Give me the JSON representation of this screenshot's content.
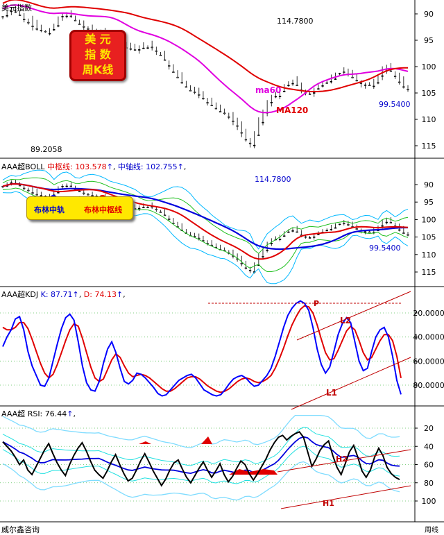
{
  "top_label": "美元指数",
  "badge": {
    "line1": "美 元",
    "line2": "指 数",
    "line3": "周K线"
  },
  "panel_titles": {
    "boll": {
      "prefix": "AAA超BOLL",
      "mid_label": "中枢线:",
      "mid_value": "103.578",
      "axis_label": "中轴线:",
      "axis_value": "102.755"
    },
    "kdj": {
      "prefix": "AAA超KDJ",
      "k_label": "K:",
      "k_value": "87.71",
      "d_label": "D:",
      "d_value": "74.13"
    },
    "rsi": {
      "prefix": "AAA超",
      "rsi_label": "RSI:",
      "rsi_value": "76.44"
    }
  },
  "legend": {
    "blue_label": "布林中轨",
    "red_label": "布林中枢线"
  },
  "footer": {
    "brand": "威尔鑫咨询",
    "unit": "周线"
  },
  "chart_data": [
    {
      "type": "candlestick",
      "panel": "price",
      "y_ticks": [
        90,
        95,
        100,
        105,
        110,
        115
      ],
      "ylim": [
        87.5,
        117.5
      ],
      "annotations": [
        {
          "text": "114.7800",
          "value": 114.78,
          "kind": "high"
        },
        {
          "text": "99.5400",
          "value": 99.54,
          "kind": "low"
        },
        {
          "text": "89.2058",
          "value": 89.2058,
          "kind": "low"
        }
      ],
      "series": [
        {
          "name": "ma60",
          "color": "#e000e0"
        },
        {
          "name": "MA120",
          "color": "#e00000"
        }
      ],
      "close_path": [
        90.5,
        89.8,
        89.3,
        89.6,
        90.2,
        91.0,
        91.6,
        92.3,
        92.8,
        93.1,
        93.3,
        92.9,
        92.0,
        90.8,
        90.1,
        89.9,
        90.4,
        91.2,
        91.9,
        92.4,
        92.8,
        93.1,
        93.3,
        93.6,
        94.0,
        94.3,
        94.9,
        95.5,
        96.0,
        96.4,
        96.6,
        96.8,
        96.5,
        96.1,
        96.0,
        96.3,
        97.0,
        97.8,
        98.7,
        99.8,
        101.0,
        102.0,
        103.0,
        103.8,
        104.5,
        104.8,
        105.3,
        106.0,
        106.8,
        107.3,
        107.9,
        108.5,
        108.8,
        109.5,
        110.3,
        111.2,
        112.5,
        113.8,
        114.5,
        113.0,
        110.5,
        108.5,
        106.8,
        106.0,
        105.2,
        104.5,
        103.5,
        102.8,
        102.5,
        103.5,
        104.4,
        104.9,
        105.0,
        104.5,
        103.8,
        103.2,
        102.6,
        102.0,
        101.5,
        101.2,
        101.0,
        101.4,
        102.0,
        102.6,
        103.1,
        103.4,
        103.5,
        103.2,
        102.0,
        100.5,
        99.9,
        100.8,
        101.8,
        102.9,
        103.8,
        104.3
      ]
    },
    {
      "type": "candlestick",
      "panel": "boll",
      "y_ticks": [
        90,
        95,
        100,
        105,
        110,
        115
      ],
      "ylim": [
        87.5,
        117.5
      ],
      "annotations": [
        {
          "text": "114.7800",
          "value": 114.78
        },
        {
          "text": "99.5400",
          "value": 99.54
        }
      ],
      "series": [
        {
          "name": "中枢线",
          "value": 103.578,
          "color": "#e00000"
        },
        {
          "name": "中轴线",
          "value": 102.755,
          "color": "#0000cc"
        }
      ]
    },
    {
      "type": "line",
      "panel": "kdj",
      "y_ticks": [
        20,
        40,
        60,
        80
      ],
      "tick_labels": [
        "20.0000",
        "40.0000",
        "60.0000",
        "80.0000"
      ],
      "ylim": [
        7,
        98
      ],
      "annotations": [
        {
          "text": "P",
          "value": 87
        },
        {
          "text": "L2"
        },
        {
          "text": "L1"
        }
      ],
      "series": [
        {
          "name": "K",
          "last": 87.71,
          "color": "#0000ff",
          "values": [
            48,
            40,
            34,
            25,
            23,
            34,
            52,
            64,
            72,
            80,
            81,
            74,
            60,
            46,
            33,
            24,
            21,
            26,
            44,
            64,
            78,
            84,
            85,
            77,
            62,
            50,
            44,
            53,
            66,
            77,
            79,
            76,
            70,
            71,
            74,
            78,
            82,
            87,
            89,
            88,
            84,
            80,
            76,
            74,
            72,
            71,
            74,
            79,
            84,
            86,
            88,
            89,
            88,
            84,
            79,
            75,
            73,
            72,
            74,
            78,
            81,
            80,
            76,
            72,
            66,
            56,
            44,
            32,
            22,
            16,
            12,
            10,
            12,
            18,
            32,
            50,
            63,
            70,
            65,
            52,
            38,
            29,
            24,
            28,
            44,
            60,
            68,
            66,
            52,
            40,
            34,
            32,
            40,
            56,
            76,
            87.71
          ]
        },
        {
          "name": "D",
          "last": 74.13,
          "color": "#e00000",
          "values": [
            32,
            34,
            34,
            32,
            28,
            28,
            33,
            42,
            52,
            62,
            70,
            74,
            71,
            63,
            53,
            43,
            34,
            29,
            31,
            41,
            53,
            65,
            74,
            77,
            75,
            67,
            59,
            54,
            57,
            64,
            70,
            73,
            72,
            71,
            72,
            74,
            77,
            80,
            83,
            85,
            85,
            83,
            80,
            77,
            74,
            73,
            73,
            75,
            78,
            81,
            83,
            85,
            86,
            85,
            83,
            80,
            77,
            75,
            74,
            75,
            77,
            78,
            77,
            75,
            72,
            66,
            58,
            49,
            39,
            30,
            23,
            17,
            14,
            15,
            20,
            30,
            42,
            53,
            59,
            58,
            51,
            43,
            35,
            31,
            34,
            43,
            53,
            59,
            57,
            50,
            43,
            38,
            38,
            43,
            56,
            74.13
          ]
        }
      ]
    },
    {
      "type": "line",
      "panel": "rsi",
      "y_ticks": [
        20,
        40,
        60,
        80,
        100
      ],
      "ylim": [
        4,
        115
      ],
      "annotations": [
        {
          "text": "H2"
        },
        {
          "text": "H1"
        }
      ],
      "series": [
        {
          "name": "RSI",
          "last": 76.44,
          "color": "#000000",
          "values": [
            35,
            40,
            45,
            52,
            60,
            55,
            66,
            71,
            62,
            53,
            44,
            37,
            48,
            58,
            66,
            72,
            60,
            50,
            42,
            36,
            45,
            56,
            66,
            71,
            75,
            67,
            57,
            49,
            60,
            70,
            78,
            75,
            66,
            56,
            48,
            57,
            67,
            75,
            83,
            76,
            66,
            58,
            55,
            65,
            74,
            80,
            72,
            64,
            57,
            66,
            74,
            67,
            59,
            71,
            79,
            73,
            64,
            56,
            60,
            70,
            77,
            70,
            62,
            54,
            44,
            36,
            30,
            28,
            33,
            29,
            26,
            24,
            30,
            46,
            62,
            54,
            44,
            38,
            34,
            50,
            63,
            71,
            59,
            46,
            39,
            52,
            67,
            74,
            66,
            52,
            42,
            50,
            63,
            70,
            74,
            76.44
          ]
        }
      ]
    }
  ]
}
